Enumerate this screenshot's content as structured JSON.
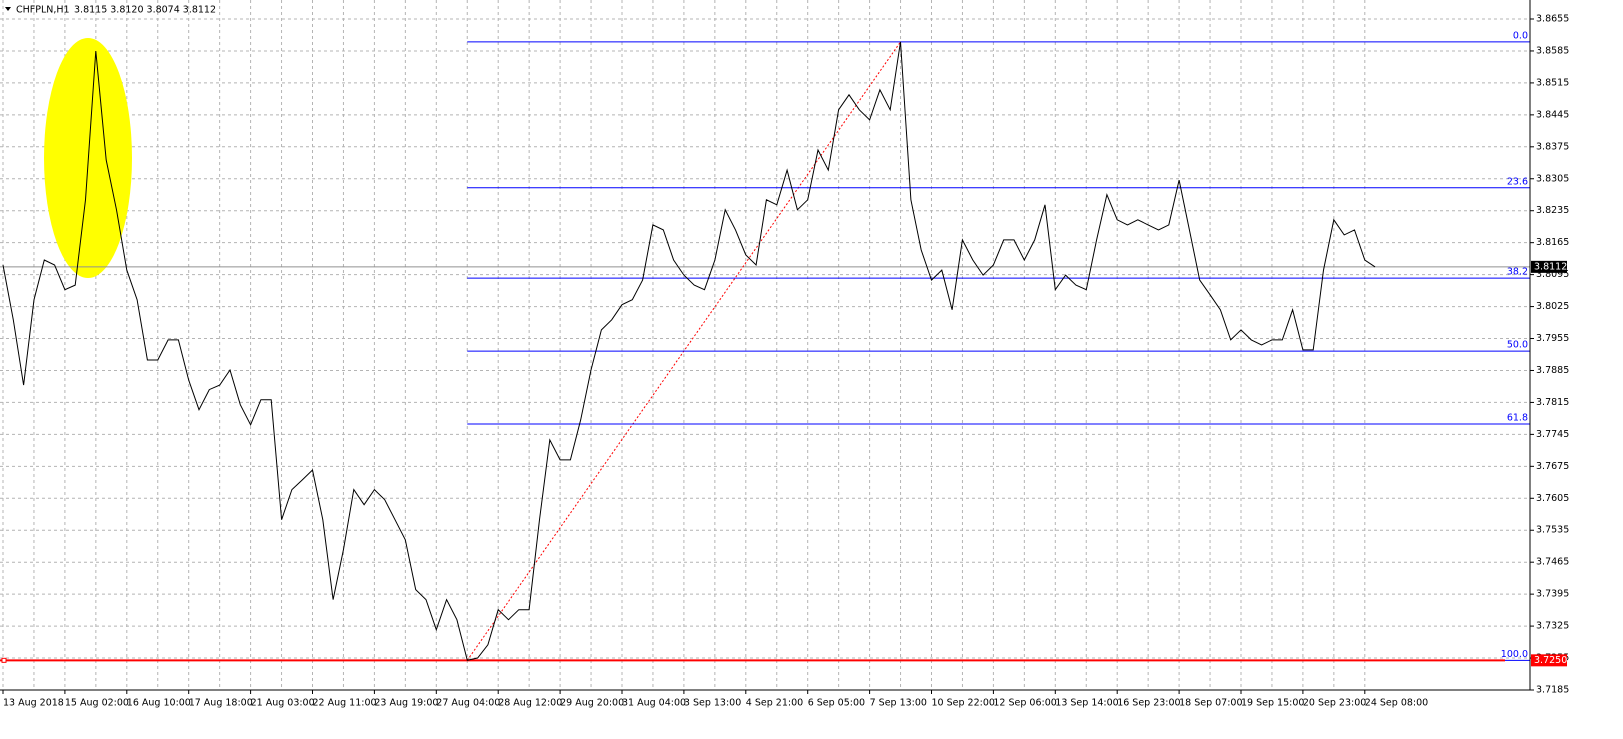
{
  "chart_data": {
    "type": "line",
    "title": "CHFPLN,H1",
    "quote": "3.8115 3.8120 3.8074 3.8112",
    "color": "#000000",
    "grid": true,
    "categories": [
      "13 Aug 2018",
      null,
      null,
      null,
      null,
      null,
      "15 Aug 02:00",
      null,
      null,
      null,
      null,
      null,
      "16 Aug 10:00",
      null,
      null,
      null,
      null,
      null,
      "17 Aug 18:00",
      null,
      null,
      null,
      null,
      null,
      "21 Aug 03:00",
      null,
      null,
      null,
      null,
      null,
      "22 Aug 11:00",
      null,
      null,
      null,
      null,
      null,
      "23 Aug 19:00",
      null,
      null,
      null,
      null,
      null,
      "27 Aug 04:00",
      null,
      null,
      null,
      null,
      null,
      "28 Aug 12:00",
      null,
      null,
      null,
      null,
      null,
      "29 Aug 20:00",
      null,
      null,
      null,
      null,
      null,
      "31 Aug 04:00",
      null,
      null,
      null,
      null,
      null,
      "3 Sep 13:00",
      null,
      null,
      null,
      null,
      null,
      "4 Sep 21:00",
      null,
      null,
      null,
      null,
      null,
      "6 Sep 05:00",
      null,
      null,
      null,
      null,
      null,
      "7 Sep 13:00",
      null,
      null,
      null,
      null,
      null,
      "10 Sep 22:00",
      null,
      null,
      null,
      null,
      null,
      "12 Sep 06:00",
      null,
      null,
      null,
      null,
      null,
      "13 Sep 14:00",
      null,
      null,
      null,
      null,
      null,
      "16 Sep 23:00",
      null,
      null,
      null,
      null,
      null,
      "18 Sep 07:00",
      null,
      null,
      null,
      null,
      null,
      "19 Sep 15:00",
      null,
      null,
      null,
      null,
      null,
      "20 Sep 23:00",
      null,
      null,
      null,
      null,
      null,
      "24 Sep 08:00",
      null
    ],
    "values": [
      3.8116,
      3.7996,
      3.7853,
      3.804,
      3.8127,
      3.8116,
      3.8062,
      3.8072,
      3.8259,
      3.8585,
      3.8346,
      3.8237,
      3.8105,
      3.804,
      3.7908,
      3.7908,
      3.7952,
      3.7952,
      3.7864,
      3.7799,
      3.7843,
      3.7853,
      3.7886,
      3.781,
      3.7766,
      3.7821,
      3.7821,
      3.7558,
      3.7624,
      3.7645,
      3.7667,
      3.7558,
      3.7383,
      3.7492,
      3.7624,
      3.7591,
      3.7624,
      3.7602,
      3.7558,
      3.7514,
      3.7405,
      3.7383,
      3.7317,
      3.7383,
      3.7339,
      3.725,
      3.7255,
      3.7284,
      3.7361,
      3.7339,
      3.7361,
      3.7361,
      3.7558,
      3.7733,
      3.7689,
      3.7689,
      3.7777,
      3.7886,
      3.7974,
      3.7996,
      3.8029,
      3.804,
      3.8083,
      3.8204,
      3.8193,
      3.8127,
      3.8094,
      3.8072,
      3.8062,
      3.8127,
      3.8237,
      3.8193,
      3.8138,
      3.8116,
      3.8259,
      3.8248,
      3.8324,
      3.8237,
      3.8259,
      3.8368,
      3.8324,
      3.8456,
      3.8489,
      3.8456,
      3.8434,
      3.85,
      3.8456,
      3.8605,
      3.8259,
      3.8149,
      3.8083,
      3.8105,
      3.8018,
      3.8171,
      3.8127,
      3.8094,
      3.8116,
      3.8171,
      3.8171,
      3.8127,
      3.8171,
      3.8248,
      3.8062,
      3.8094,
      3.8072,
      3.8062,
      3.8171,
      3.827,
      3.8215,
      3.8204,
      3.8215,
      3.8204,
      3.8193,
      3.8204,
      3.8302,
      3.8193,
      3.8083,
      3.8051,
      3.8018,
      3.7952,
      3.7974,
      3.7952,
      3.7941,
      3.7952,
      3.7952,
      3.8018,
      3.793,
      3.793,
      3.8105,
      3.8215,
      3.8182,
      3.8193,
      3.8127,
      3.8112
    ],
    "ylim": [
      3.7185,
      3.8655
    ],
    "yticks": [
      3.8655,
      3.8585,
      3.8515,
      3.8445,
      3.8375,
      3.8305,
      3.8235,
      3.8165,
      3.8095,
      3.8025,
      3.7955,
      3.7885,
      3.7815,
      3.7745,
      3.7675,
      3.7605,
      3.7535,
      3.7465,
      3.7395,
      3.7325,
      3.7255,
      3.7185
    ],
    "bid": 3.8112,
    "bid_color": "#000000",
    "level_line": {
      "value": 3.725,
      "label": "3.7250"
    },
    "level_color": "#ff0000",
    "fibo_color": "#0000ff",
    "fibo_levels": [
      {
        "value": 0,
        "label": "0.0"
      },
      {
        "value": 23.6,
        "label": "23.6"
      },
      {
        "value": 38.2,
        "label": "38.2"
      },
      {
        "value": 50,
        "label": "50.0"
      },
      {
        "value": 61.8,
        "label": "61.8"
      },
      {
        "value": 100,
        "label": "100.0"
      }
    ]
  }
}
